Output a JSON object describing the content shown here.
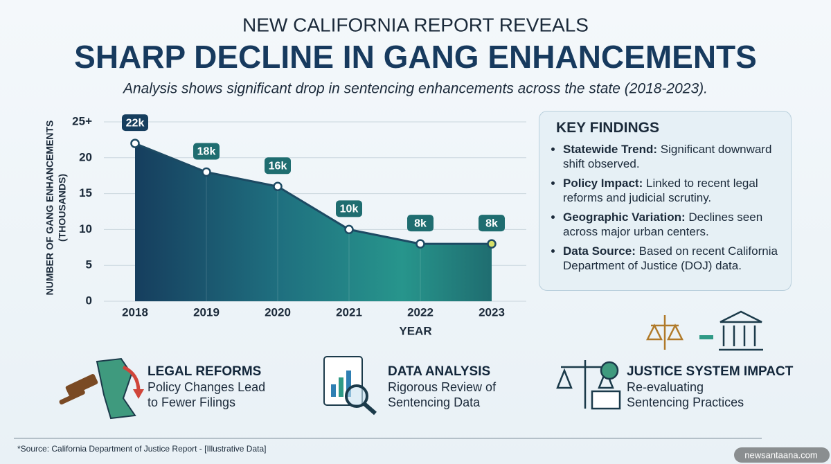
{
  "header": {
    "kicker": "NEW CALIFORNIA REPORT REVEALS",
    "title": "SHARP DECLINE IN GANG ENHANCEMENTS",
    "subtitle": "Analysis shows significant drop in sentencing enhancements across the state (2018-2023)."
  },
  "chart_data": {
    "type": "area",
    "ylabel": [
      "NUMBER OF GANG ENHANCEMENTS",
      "(THOUSANDS)"
    ],
    "xlabel": "YEAR",
    "categories": [
      "2018",
      "2019",
      "2020",
      "2021",
      "2022",
      "2023"
    ],
    "values": [
      22,
      18,
      16,
      10,
      8,
      8
    ],
    "value_labels": [
      "22k",
      "18k",
      "16k",
      "10k",
      "8k",
      "8k"
    ],
    "ylim": [
      0,
      25
    ],
    "yticks": [
      0,
      5,
      10,
      15,
      20,
      {
        "value": 25,
        "label": "25+"
      }
    ],
    "grid": true,
    "color": "#1d4a63"
  },
  "key_findings": {
    "title": "KEY FINDINGS",
    "items": [
      {
        "label": "Statewide Trend:",
        "text": "Significant downward shift observed."
      },
      {
        "label": "Policy Impact:",
        "text": "Linked to recent legal reforms and judicial scrutiny."
      },
      {
        "label": "Geographic Variation:",
        "text": "Declines seen across major urban centers."
      },
      {
        "label": "Data Source:",
        "text": "Based on recent California Department of Justice (DOJ) data."
      }
    ]
  },
  "highlights": [
    {
      "title": "LEGAL REFORMS",
      "lines": [
        "Policy Changes Lead",
        "to Fewer Filings"
      ]
    },
    {
      "title": "DATA ANALYSIS",
      "lines": [
        "Rigorous Review of",
        "Sentencing Data"
      ]
    },
    {
      "title": "JUSTICE SYSTEM IMPACT",
      "lines": [
        "Re-evaluating",
        "Sentencing Practices"
      ]
    }
  ],
  "source": "*Source: California Department of Justice Report - [Illustrative Data]",
  "watermark": "newsantaana.com"
}
